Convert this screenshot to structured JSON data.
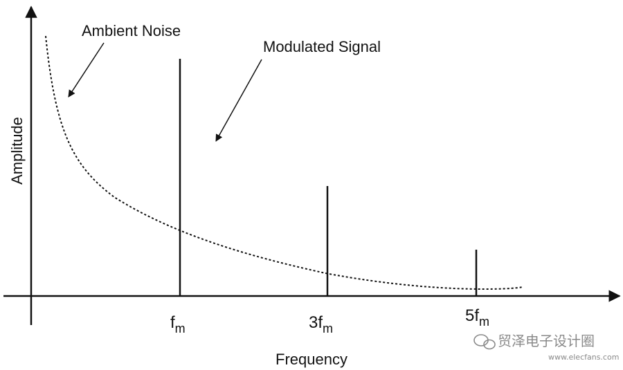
{
  "annotations": {
    "noise_label": "Ambient Noise",
    "signal_label": "Modulated Signal"
  },
  "axes": {
    "y_label": "Amplitude",
    "x_label": "Frequency"
  },
  "ticks": [
    {
      "coef": "",
      "sub": "m"
    },
    {
      "coef": "3",
      "sub": "m"
    },
    {
      "coef": "5",
      "sub": "m"
    }
  ],
  "tick_symbol": "f",
  "harmonics": [
    {
      "harmonic": 1,
      "relative_amplitude": 1.0
    },
    {
      "harmonic": 3,
      "relative_amplitude": 0.46
    },
    {
      "harmonic": 5,
      "relative_amplitude": 0.17
    }
  ],
  "watermark": {
    "cn": "贸泽电子设计圈",
    "site": "www.elecfans.com"
  },
  "colors": {
    "ink": "#111111",
    "watermark": "#8a8a8a"
  }
}
